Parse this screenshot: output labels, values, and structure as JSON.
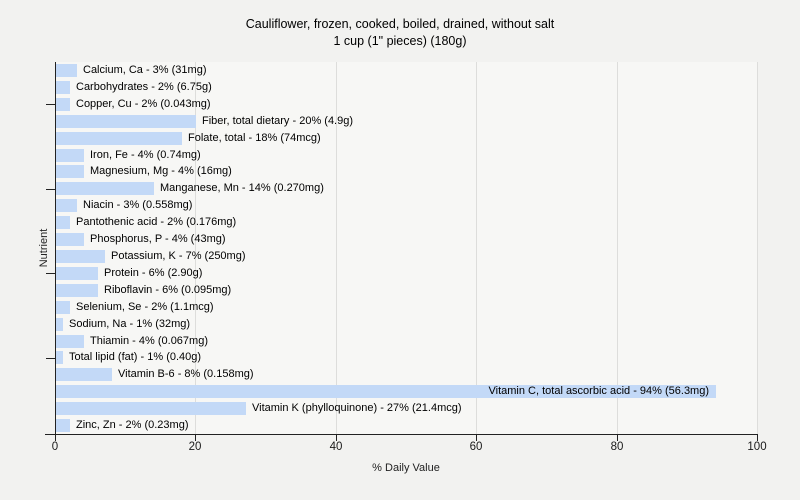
{
  "chart_data": {
    "type": "bar",
    "orientation": "horizontal",
    "title": "Cauliflower, frozen, cooked, boiled, drained, without salt",
    "subtitle": "1 cup (1\" pieces) (180g)",
    "xlabel": "% Daily Value",
    "ylabel": "Nutrient",
    "xlim": [
      0,
      100
    ],
    "x_ticks": [
      0,
      20,
      40,
      60,
      80,
      100
    ],
    "grid": "vertical gridlines at each x tick",
    "legend": "none",
    "bar_color": "#c3d9f7",
    "plot_background": "#f7f7f5",
    "page_background": "#f2f2f0",
    "bars": [
      {
        "nutrient": "Calcium, Ca",
        "percent": 3,
        "amount": "31mg",
        "label": "Calcium, Ca - 3% (31mg)"
      },
      {
        "nutrient": "Carbohydrates",
        "percent": 2,
        "amount": "6.75g",
        "label": "Carbohydrates - 2% (6.75g)"
      },
      {
        "nutrient": "Copper, Cu",
        "percent": 2,
        "amount": "0.043mg",
        "label": "Copper, Cu - 2% (0.043mg)"
      },
      {
        "nutrient": "Fiber, total dietary",
        "percent": 20,
        "amount": "4.9g",
        "label": "Fiber, total dietary - 20% (4.9g)"
      },
      {
        "nutrient": "Folate, total",
        "percent": 18,
        "amount": "74mcg",
        "label": "Folate, total - 18% (74mcg)"
      },
      {
        "nutrient": "Iron, Fe",
        "percent": 4,
        "amount": "0.74mg",
        "label": "Iron, Fe - 4% (0.74mg)"
      },
      {
        "nutrient": "Magnesium, Mg",
        "percent": 4,
        "amount": "16mg",
        "label": "Magnesium, Mg - 4% (16mg)"
      },
      {
        "nutrient": "Manganese, Mn",
        "percent": 14,
        "amount": "0.270mg",
        "label": "Manganese, Mn - 14% (0.270mg)"
      },
      {
        "nutrient": "Niacin",
        "percent": 3,
        "amount": "0.558mg",
        "label": "Niacin - 3% (0.558mg)"
      },
      {
        "nutrient": "Pantothenic acid",
        "percent": 2,
        "amount": "0.176mg",
        "label": "Pantothenic acid - 2% (0.176mg)"
      },
      {
        "nutrient": "Phosphorus, P",
        "percent": 4,
        "amount": "43mg",
        "label": "Phosphorus, P - 4% (43mg)"
      },
      {
        "nutrient": "Potassium, K",
        "percent": 7,
        "amount": "250mg",
        "label": "Potassium, K - 7% (250mg)"
      },
      {
        "nutrient": "Protein",
        "percent": 6,
        "amount": "2.90g",
        "label": "Protein - 6% (2.90g)"
      },
      {
        "nutrient": "Riboflavin",
        "percent": 6,
        "amount": "0.095mg",
        "label": "Riboflavin - 6% (0.095mg)"
      },
      {
        "nutrient": "Selenium, Se",
        "percent": 2,
        "amount": "1.1mcg",
        "label": "Selenium, Se - 2% (1.1mcg)"
      },
      {
        "nutrient": "Sodium, Na",
        "percent": 1,
        "amount": "32mg",
        "label": "Sodium, Na - 1% (32mg)"
      },
      {
        "nutrient": "Thiamin",
        "percent": 4,
        "amount": "0.067mg",
        "label": "Thiamin - 4% (0.067mg)"
      },
      {
        "nutrient": "Total lipid (fat)",
        "percent": 1,
        "amount": "0.40g",
        "label": "Total lipid (fat) - 1% (0.40g)"
      },
      {
        "nutrient": "Vitamin B-6",
        "percent": 8,
        "amount": "0.158mg",
        "label": "Vitamin B-6 - 8% (0.158mg)"
      },
      {
        "nutrient": "Vitamin C, total ascorbic acid",
        "percent": 94,
        "amount": "56.3mg",
        "label": "Vitamin C, total ascorbic acid - 94% (56.3mg)"
      },
      {
        "nutrient": "Vitamin K (phylloquinone)",
        "percent": 27,
        "amount": "21.4mcg",
        "label": "Vitamin K (phylloquinone) - 27% (21.4mcg)"
      },
      {
        "nutrient": "Zinc, Zn",
        "percent": 2,
        "amount": "0.23mg",
        "label": "Zinc, Zn - 2% (0.23mg)"
      }
    ]
  }
}
